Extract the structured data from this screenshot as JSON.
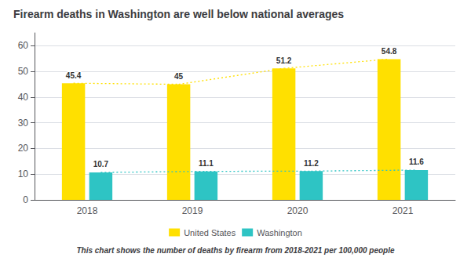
{
  "chart_data": {
    "type": "bar",
    "title": "Firearm deaths in Washington are well below national averages",
    "subtitle": "This chart shows the number of deaths by firearm from 2018-2021 per 100,000 people",
    "categories": [
      "2018",
      "2019",
      "2020",
      "2021"
    ],
    "series": [
      {
        "name": "United States",
        "color": "#FFE000",
        "values": [
          45.4,
          45,
          51.2,
          54.8
        ],
        "line_style": "dotted"
      },
      {
        "name": "Washington",
        "color": "#2EC4C4",
        "values": [
          10.7,
          11.1,
          11.2,
          11.6
        ],
        "line_style": "dotted"
      }
    ],
    "ylim": [
      0,
      65
    ],
    "yticks": [
      0,
      10,
      20,
      30,
      40,
      50,
      60
    ],
    "grid": true,
    "legend": "bottom",
    "data_labels": true
  }
}
